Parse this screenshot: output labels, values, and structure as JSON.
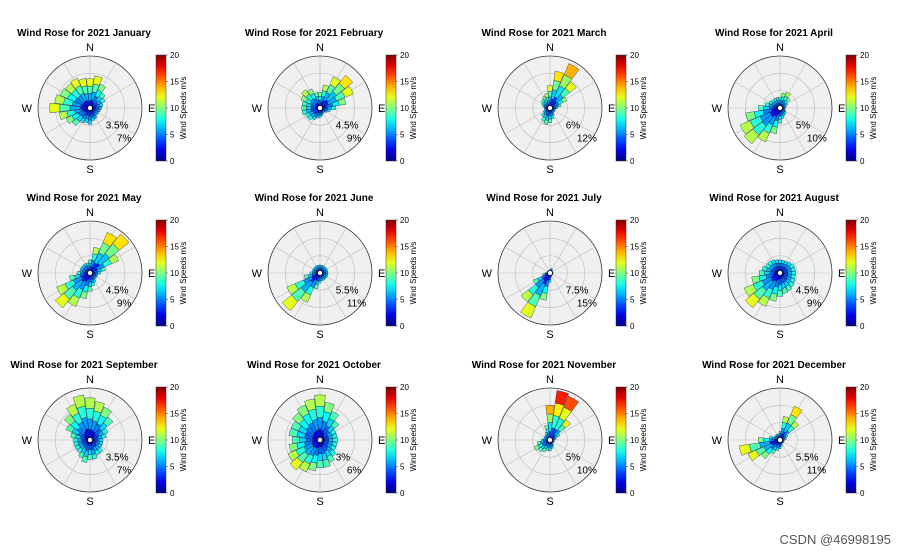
{
  "chart_data": [
    {
      "type": "windrose",
      "title": "Wind Rose for 2021 January",
      "directions": [
        "N",
        "E",
        "S",
        "W"
      ],
      "radial_labels": [
        "3.5%",
        "7%"
      ],
      "colorbar": {
        "label": "Wind Speeds m/s",
        "ticks": [
          "0",
          "5",
          "10",
          "15",
          "20"
        ],
        "range": [
          0,
          20
        ]
      },
      "direction_deg": [
        0,
        15,
        30,
        45,
        60,
        75,
        90,
        105,
        120,
        135,
        150,
        165,
        180,
        195,
        210,
        225,
        240,
        255,
        270,
        285,
        300,
        315,
        330,
        345
      ],
      "frequency_pct": [
        4.5,
        5.0,
        4.0,
        3.0,
        2.5,
        2.0,
        1.8,
        1.6,
        1.5,
        1.5,
        1.8,
        2.0,
        2.5,
        2.3,
        2.5,
        3.5,
        4.0,
        4.8,
        6.2,
        5.5,
        5.0,
        4.8,
        5.0,
        4.6
      ],
      "max_speed": [
        12,
        12,
        10,
        9,
        8,
        7,
        6,
        6,
        6,
        6,
        6,
        7,
        7,
        7,
        7,
        9,
        10,
        11,
        12,
        11,
        10,
        11,
        12,
        12
      ],
      "rmax_pct": 8.0
    },
    {
      "type": "windrose",
      "title": "Wind Rose for 2021 February",
      "directions": [
        "N",
        "E",
        "S",
        "W"
      ],
      "radial_labels": [
        "4.5%",
        "9%"
      ],
      "colorbar": {
        "label": "Wind Speeds m/s",
        "ticks": [
          "0",
          "5",
          "10",
          "15",
          "20"
        ],
        "range": [
          0,
          20
        ]
      },
      "direction_deg": [
        0,
        15,
        30,
        45,
        60,
        75,
        90,
        105,
        120,
        135,
        150,
        165,
        180,
        195,
        210,
        225,
        240,
        255,
        270,
        285,
        300,
        315,
        330,
        345
      ],
      "frequency_pct": [
        3.0,
        4.5,
        6.5,
        8.0,
        7.0,
        5.0,
        3.0,
        2.0,
        1.5,
        1.2,
        1.2,
        1.5,
        1.8,
        2.0,
        2.5,
        3.0,
        3.0,
        3.5,
        3.5,
        3.5,
        4.0,
        4.5,
        4.0,
        3.0
      ],
      "max_speed": [
        10,
        11,
        12,
        13,
        12,
        10,
        8,
        7,
        6,
        6,
        6,
        6,
        7,
        7,
        7,
        8,
        8,
        8,
        9,
        9,
        10,
        11,
        10,
        9
      ],
      "rmax_pct": 10.0
    },
    {
      "type": "windrose",
      "title": "Wind Rose for 2021 March",
      "directions": [
        "N",
        "E",
        "S",
        "W"
      ],
      "radial_labels": [
        "6%",
        "12%"
      ],
      "colorbar": {
        "label": "Wind Speeds m/s",
        "ticks": [
          "0",
          "5",
          "10",
          "15",
          "20"
        ],
        "range": [
          0,
          20
        ]
      },
      "direction_deg": [
        0,
        15,
        30,
        45,
        60,
        75,
        90,
        105,
        120,
        135,
        150,
        165,
        180,
        195,
        210,
        225,
        240,
        255,
        270,
        285,
        300,
        315,
        330,
        345
      ],
      "frequency_pct": [
        6.0,
        10.0,
        13.0,
        9.0,
        5.0,
        3.0,
        2.0,
        1.5,
        1.5,
        1.5,
        2.0,
        3.0,
        4.0,
        4.5,
        4.0,
        3.0,
        2.0,
        1.5,
        1.5,
        2.0,
        2.5,
        3.0,
        3.5,
        4.0
      ],
      "max_speed": [
        12,
        13,
        14,
        12,
        10,
        8,
        7,
        6,
        6,
        6,
        7,
        8,
        9,
        9,
        9,
        8,
        7,
        6,
        6,
        7,
        8,
        9,
        10,
        11
      ],
      "rmax_pct": 14.0
    },
    {
      "type": "windrose",
      "title": "Wind Rose for 2021 April",
      "directions": [
        "N",
        "E",
        "S",
        "W"
      ],
      "radial_labels": [
        "5%",
        "10%"
      ],
      "colorbar": {
        "label": "Wind Speeds m/s",
        "ticks": [
          "0",
          "5",
          "10",
          "15",
          "20"
        ],
        "range": [
          0,
          20
        ]
      },
      "direction_deg": [
        0,
        15,
        30,
        45,
        60,
        75,
        90,
        105,
        120,
        135,
        150,
        165,
        180,
        195,
        210,
        225,
        240,
        255,
        270,
        285,
        300,
        315,
        330,
        345
      ],
      "frequency_pct": [
        2.5,
        3.5,
        4.0,
        3.0,
        2.0,
        1.5,
        1.2,
        1.2,
        1.5,
        1.8,
        2.0,
        2.5,
        3.5,
        6.0,
        8.5,
        10.5,
        10.0,
        8.0,
        5.0,
        3.5,
        2.8,
        2.5,
        2.5,
        2.5
      ],
      "max_speed": [
        9,
        10,
        11,
        10,
        8,
        7,
        6,
        6,
        6,
        7,
        7,
        8,
        9,
        10,
        11,
        11,
        11,
        10,
        9,
        8,
        8,
        8,
        8,
        8
      ],
      "rmax_pct": 12.0
    },
    {
      "type": "windrose",
      "title": "Wind Rose for 2021 May",
      "directions": [
        "N",
        "E",
        "S",
        "W"
      ],
      "radial_labels": [
        "4.5%",
        "9%"
      ],
      "colorbar": {
        "label": "Wind Speeds m/s",
        "ticks": [
          "0",
          "5",
          "10",
          "15",
          "20"
        ],
        "range": [
          0,
          20
        ]
      },
      "direction_deg": [
        0,
        15,
        30,
        45,
        60,
        75,
        90,
        105,
        120,
        135,
        150,
        165,
        180,
        195,
        210,
        225,
        240,
        255,
        270,
        285,
        300,
        315,
        330,
        345
      ],
      "frequency_pct": [
        2.5,
        5.0,
        8.5,
        9.5,
        6.0,
        3.0,
        2.0,
        1.5,
        1.5,
        1.5,
        2.0,
        2.5,
        3.5,
        5.0,
        7.0,
        8.5,
        7.0,
        4.0,
        2.5,
        2.0,
        2.0,
        2.0,
        2.0,
        2.0
      ],
      "max_speed": [
        9,
        11,
        13,
        13,
        11,
        9,
        7,
        6,
        6,
        6,
        7,
        8,
        9,
        10,
        11,
        12,
        11,
        9,
        8,
        7,
        7,
        7,
        7,
        8
      ],
      "rmax_pct": 10.0
    },
    {
      "type": "windrose",
      "title": "Wind Rose for 2021 June",
      "directions": [
        "N",
        "E",
        "S",
        "W"
      ],
      "radial_labels": [
        "5.5%",
        "11%"
      ],
      "colorbar": {
        "label": "Wind Speeds m/s",
        "ticks": [
          "0",
          "5",
          "10",
          "15",
          "20"
        ],
        "range": [
          0,
          20
        ]
      },
      "direction_deg": [
        0,
        15,
        30,
        45,
        60,
        75,
        90,
        105,
        120,
        135,
        150,
        165,
        180,
        195,
        210,
        225,
        240,
        255,
        270,
        285,
        300,
        315,
        330,
        345
      ],
      "frequency_pct": [
        2.0,
        2.0,
        2.0,
        2.0,
        2.0,
        2.0,
        2.0,
        2.0,
        2.0,
        2.0,
        2.0,
        2.0,
        2.5,
        4.0,
        8.0,
        12.0,
        9.0,
        4.0,
        2.5,
        2.0,
        2.0,
        2.0,
        2.0,
        2.0
      ],
      "max_speed": [
        7,
        7,
        7,
        7,
        7,
        7,
        7,
        7,
        7,
        7,
        7,
        7,
        8,
        9,
        11,
        12,
        11,
        9,
        8,
        7,
        7,
        7,
        7,
        7
      ],
      "rmax_pct": 13.0
    },
    {
      "type": "windrose",
      "title": "Wind Rose for 2021 July",
      "directions": [
        "N",
        "E",
        "S",
        "W"
      ],
      "radial_labels": [
        "7.5%",
        "15%"
      ],
      "colorbar": {
        "label": "Wind Speeds m/s",
        "ticks": [
          "0",
          "5",
          "10",
          "15",
          "20"
        ],
        "range": [
          0,
          20
        ]
      },
      "direction_deg": [
        0,
        15,
        30,
        45,
        60,
        75,
        90,
        105,
        120,
        135,
        150,
        165,
        180,
        195,
        210,
        225,
        240,
        255,
        270,
        285,
        300,
        315,
        330,
        345
      ],
      "frequency_pct": [
        1.0,
        1.5,
        1.5,
        1.0,
        1.0,
        1.0,
        1.0,
        1.0,
        1.0,
        1.0,
        1.0,
        1.5,
        3.0,
        9.0,
        16.0,
        12.0,
        6.0,
        2.5,
        1.5,
        1.0,
        1.0,
        1.0,
        1.0,
        1.0
      ],
      "max_speed": [
        6,
        6,
        6,
        6,
        6,
        6,
        6,
        6,
        6,
        6,
        6,
        7,
        8,
        10,
        12,
        11,
        9,
        7,
        6,
        6,
        6,
        6,
        6,
        6
      ],
      "rmax_pct": 17.0
    },
    {
      "type": "windrose",
      "title": "Wind Rose for 2021 August",
      "directions": [
        "N",
        "E",
        "S",
        "W"
      ],
      "radial_labels": [
        "4.5%",
        "9%"
      ],
      "colorbar": {
        "label": "Wind Speeds m/s",
        "ticks": [
          "0",
          "5",
          "10",
          "15",
          "20"
        ],
        "range": [
          0,
          20
        ]
      },
      "direction_deg": [
        0,
        15,
        30,
        45,
        60,
        75,
        90,
        105,
        120,
        135,
        150,
        165,
        180,
        195,
        210,
        225,
        240,
        255,
        270,
        285,
        300,
        315,
        330,
        345
      ],
      "frequency_pct": [
        2.5,
        2.5,
        2.5,
        2.8,
        3.0,
        3.0,
        3.0,
        3.0,
        3.2,
        3.5,
        3.8,
        4.0,
        4.5,
        5.5,
        7.0,
        8.5,
        7.5,
        5.5,
        4.0,
        3.5,
        3.0,
        3.0,
        2.8,
        2.6
      ],
      "max_speed": [
        7,
        7,
        7,
        7,
        8,
        8,
        8,
        8,
        8,
        8,
        9,
        9,
        9,
        10,
        11,
        12,
        11,
        10,
        9,
        8,
        8,
        8,
        7,
        7
      ],
      "rmax_pct": 10.0
    },
    {
      "type": "windrose",
      "title": "Wind Rose for 2021 September",
      "directions": [
        "N",
        "E",
        "S",
        "W"
      ],
      "radial_labels": [
        "3.5%",
        "7%"
      ],
      "colorbar": {
        "label": "Wind Speeds m/s",
        "ticks": [
          "0",
          "5",
          "10",
          "15",
          "20"
        ],
        "range": [
          0,
          20
        ]
      },
      "direction_deg": [
        0,
        15,
        30,
        45,
        60,
        75,
        90,
        105,
        120,
        135,
        150,
        165,
        180,
        195,
        210,
        225,
        240,
        255,
        270,
        285,
        300,
        315,
        330,
        345
      ],
      "frequency_pct": [
        6.5,
        6.0,
        5.5,
        4.5,
        3.0,
        2.5,
        2.0,
        2.0,
        2.0,
        2.5,
        2.5,
        3.0,
        3.0,
        3.5,
        3.0,
        2.5,
        2.5,
        2.5,
        2.5,
        3.0,
        4.0,
        5.0,
        6.0,
        7.0
      ],
      "max_speed": [
        11,
        11,
        10,
        9,
        8,
        8,
        7,
        7,
        7,
        8,
        8,
        8,
        9,
        9,
        9,
        8,
        8,
        8,
        8,
        9,
        9,
        10,
        11,
        11
      ],
      "rmax_pct": 8.0
    },
    {
      "type": "windrose",
      "title": "Wind Rose for 2021 October",
      "directions": [
        "N",
        "E",
        "S",
        "W"
      ],
      "radial_labels": [
        "3%",
        "6%"
      ],
      "colorbar": {
        "label": "Wind Speeds m/s",
        "ticks": [
          "0",
          "5",
          "10",
          "15",
          "20"
        ],
        "range": [
          0,
          20
        ]
      },
      "direction_deg": [
        0,
        15,
        30,
        45,
        60,
        75,
        90,
        105,
        120,
        135,
        150,
        165,
        180,
        195,
        210,
        225,
        240,
        255,
        270,
        285,
        300,
        315,
        330,
        345
      ],
      "frequency_pct": [
        6.5,
        5.5,
        4.5,
        3.5,
        2.5,
        2.5,
        2.5,
        2.5,
        2.5,
        3.0,
        3.5,
        4.0,
        4.0,
        4.5,
        5.0,
        5.5,
        5.0,
        4.5,
        4.0,
        4.5,
        4.5,
        5.0,
        5.5,
        6.0
      ],
      "max_speed": [
        11,
        10,
        9,
        9,
        8,
        8,
        8,
        8,
        8,
        8,
        9,
        9,
        9,
        10,
        11,
        12,
        11,
        10,
        9,
        9,
        9,
        10,
        10,
        11
      ],
      "rmax_pct": 7.5
    },
    {
      "type": "windrose",
      "title": "Wind Rose for 2021 November",
      "directions": [
        "N",
        "E",
        "S",
        "W"
      ],
      "radial_labels": [
        "5%",
        "10%"
      ],
      "colorbar": {
        "label": "Wind Speeds m/s",
        "ticks": [
          "0",
          "5",
          "10",
          "15",
          "20"
        ],
        "range": [
          0,
          20
        ]
      },
      "direction_deg": [
        0,
        15,
        30,
        45,
        60,
        75,
        90,
        105,
        120,
        135,
        150,
        165,
        180,
        195,
        210,
        225,
        240,
        255,
        270,
        285,
        300,
        315,
        330,
        345
      ],
      "frequency_pct": [
        8.0,
        11.5,
        11.0,
        6.0,
        2.5,
        1.5,
        1.0,
        1.0,
        1.0,
        1.0,
        1.5,
        2.0,
        2.5,
        2.5,
        3.0,
        3.5,
        4.0,
        3.0,
        2.0,
        1.5,
        1.5,
        1.5,
        2.0,
        3.5
      ],
      "max_speed": [
        14,
        17,
        16,
        12,
        9,
        7,
        6,
        6,
        6,
        6,
        7,
        7,
        8,
        8,
        9,
        9,
        10,
        9,
        8,
        7,
        7,
        7,
        8,
        10
      ],
      "rmax_pct": 12.0
    },
    {
      "type": "windrose",
      "title": "Wind Rose for 2021 December",
      "directions": [
        "N",
        "E",
        "S",
        "W"
      ],
      "radial_labels": [
        "5.5%",
        "11%"
      ],
      "colorbar": {
        "label": "Wind Speeds m/s",
        "ticks": [
          "0",
          "5",
          "10",
          "15",
          "20"
        ],
        "range": [
          0,
          20
        ]
      },
      "direction_deg": [
        0,
        15,
        30,
        45,
        60,
        75,
        90,
        105,
        120,
        135,
        150,
        165,
        180,
        195,
        210,
        225,
        240,
        255,
        270,
        285,
        300,
        315,
        330,
        345
      ],
      "frequency_pct": [
        2.0,
        5.5,
        8.5,
        5.5,
        2.0,
        1.5,
        1.0,
        1.0,
        1.0,
        1.0,
        1.0,
        1.5,
        2.0,
        2.5,
        3.5,
        5.5,
        8.0,
        9.5,
        5.0,
        2.5,
        1.5,
        1.5,
        1.5,
        1.5
      ],
      "max_speed": [
        8,
        11,
        13,
        11,
        8,
        7,
        6,
        6,
        6,
        6,
        6,
        7,
        7,
        8,
        9,
        10,
        12,
        12,
        10,
        8,
        7,
        7,
        7,
        7
      ],
      "rmax_pct": 12.0
    }
  ],
  "watermark": "CSDN @46998195"
}
